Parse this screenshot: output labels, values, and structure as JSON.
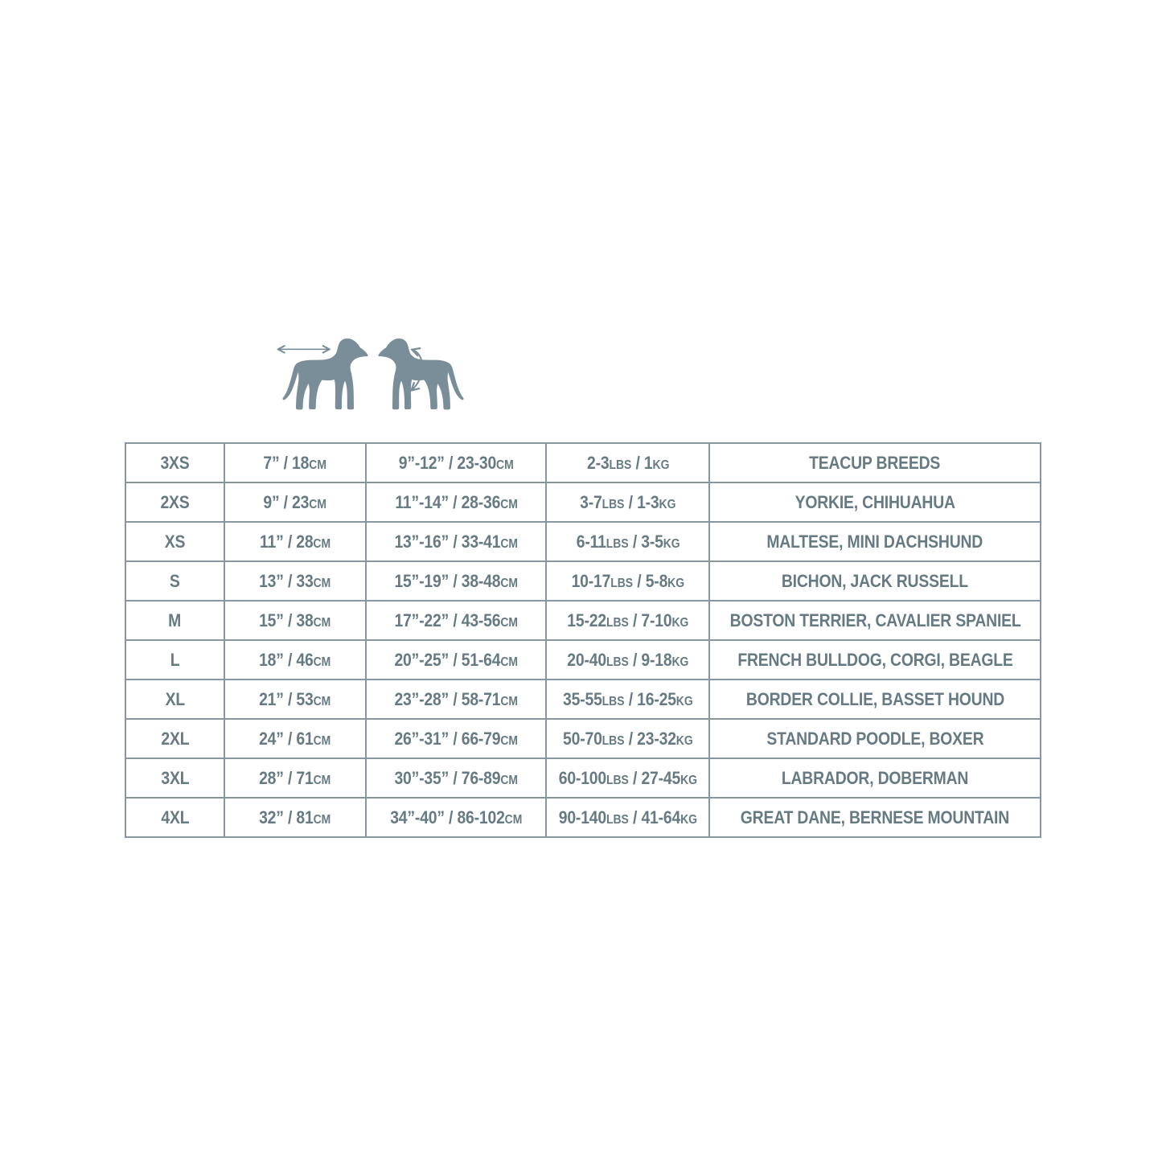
{
  "page": {
    "background_color": "#FFFFFF"
  },
  "illustration": {
    "dog_color": "#7A8E99",
    "arrow_color": "#7A8E99",
    "left_dog": "dog silhouette facing right with horizontal double-headed arrow above back (back length)",
    "right_dog": "dog silhouette facing left with curved measuring-loop arrow around chest (chest girth)"
  },
  "table": {
    "border_color": "#8796A0",
    "text_color": "#657A82",
    "rows": [
      {
        "size": "3XS",
        "back_length": "7” / 18[CM]",
        "chest_girth": "9”-12” / 23-30[CM]",
        "weight": "2-3[LBS] / 1[KG]",
        "breeds": "TEACUP BREEDS"
      },
      {
        "size": "2XS",
        "back_length": "9” / 23[CM]",
        "chest_girth": "11”-14” / 28-36[CM]",
        "weight": "3-7[LBS] / 1-3[KG]",
        "breeds": "YORKIE, CHIHUAHUA"
      },
      {
        "size": "XS",
        "back_length": "11” / 28[CM]",
        "chest_girth": "13”-16” / 33-41[CM]",
        "weight": "6-11[LBS] / 3-5[KG]",
        "breeds": "MALTESE, MINI DACHSHUND"
      },
      {
        "size": "S",
        "back_length": "13” / 33[CM]",
        "chest_girth": "15”-19” / 38-48[CM]",
        "weight": "10-17[LBS] / 5-8[KG]",
        "breeds": "BICHON, JACK RUSSELL"
      },
      {
        "size": "M",
        "back_length": "15” / 38[CM]",
        "chest_girth": "17”-22” / 43-56[CM]",
        "weight": "15-22[LBS] / 7-10[KG]",
        "breeds": "BOSTON TERRIER, CAVALIER SPANIEL"
      },
      {
        "size": "L",
        "back_length": "18” / 46[CM]",
        "chest_girth": "20”-25” / 51-64[CM]",
        "weight": "20-40[LBS] / 9-18[KG]",
        "breeds": "FRENCH BULLDOG, CORGI, BEAGLE"
      },
      {
        "size": "XL",
        "back_length": "21” / 53[CM]",
        "chest_girth": "23”-28” / 58-71[CM]",
        "weight": "35-55[LBS] / 16-25[KG]",
        "breeds": "BORDER COLLIE, BASSET HOUND"
      },
      {
        "size": "2XL",
        "back_length": "24” / 61[CM]",
        "chest_girth": "26”-31” / 66-79[CM]",
        "weight": "50-70[LBS] / 23-32[KG]",
        "breeds": "STANDARD POODLE, BOXER"
      },
      {
        "size": "3XL",
        "back_length": "28” / 71[CM]",
        "chest_girth": "30”-35” / 76-89[CM]",
        "weight": "60-100[LBS] / 27-45[KG]",
        "breeds": "LABRADOR, DOBERMAN"
      },
      {
        "size": "4XL",
        "back_length": "32” / 81[CM]",
        "chest_girth": "34”-40” / 86-102[CM]",
        "weight": "90-140[LBS] / 41-64[KG]",
        "breeds": "GREAT DANE, BERNESE MOUNTAIN"
      }
    ]
  },
  "chart_data": {
    "type": "table",
    "columns": [
      "size",
      "back_length",
      "chest_girth",
      "weight",
      "breeds"
    ],
    "rows": [
      [
        "3XS",
        "7” / 18CM",
        "9”-12” / 23-30CM",
        "2-3LBS / 1KG",
        "TEACUP BREEDS"
      ],
      [
        "2XS",
        "9” / 23CM",
        "11”-14” / 28-36CM",
        "3-7LBS / 1-3KG",
        "YORKIE, CHIHUAHUA"
      ],
      [
        "XS",
        "11” / 28CM",
        "13”-16” / 33-41CM",
        "6-11LBS / 3-5KG",
        "MALTESE, MINI DACHSHUND"
      ],
      [
        "S",
        "13” / 33CM",
        "15”-19” / 38-48CM",
        "10-17LBS / 5-8KG",
        "BICHON, JACK RUSSELL"
      ],
      [
        "M",
        "15” / 38CM",
        "17”-22” / 43-56CM",
        "15-22LBS / 7-10KG",
        "BOSTON TERRIER, CAVALIER SPANIEL"
      ],
      [
        "L",
        "18” / 46CM",
        "20”-25” / 51-64CM",
        "20-40LBS / 9-18KG",
        "FRENCH BULLDOG, CORGI, BEAGLE"
      ],
      [
        "XL",
        "21” / 53CM",
        "23”-28” / 58-71CM",
        "35-55LBS / 16-25KG",
        "BORDER COLLIE, BASSET HOUND"
      ],
      [
        "2XL",
        "24” / 61CM",
        "26”-31” / 66-79CM",
        "50-70LBS / 23-32KG",
        "STANDARD POODLE, BOXER"
      ],
      [
        "3XL",
        "28” / 71CM",
        "30”-35” / 76-89CM",
        "60-100LBS / 27-45KG",
        "LABRADOR, DOBERMAN"
      ],
      [
        "4XL",
        "32” / 81CM",
        "34”-40” / 86-102CM",
        "90-140LBS / 41-64KG",
        "GREAT DANE, BERNESE MOUNTAIN"
      ]
    ],
    "title": "",
    "legend": "none",
    "grid": "full cell borders, no header row"
  }
}
